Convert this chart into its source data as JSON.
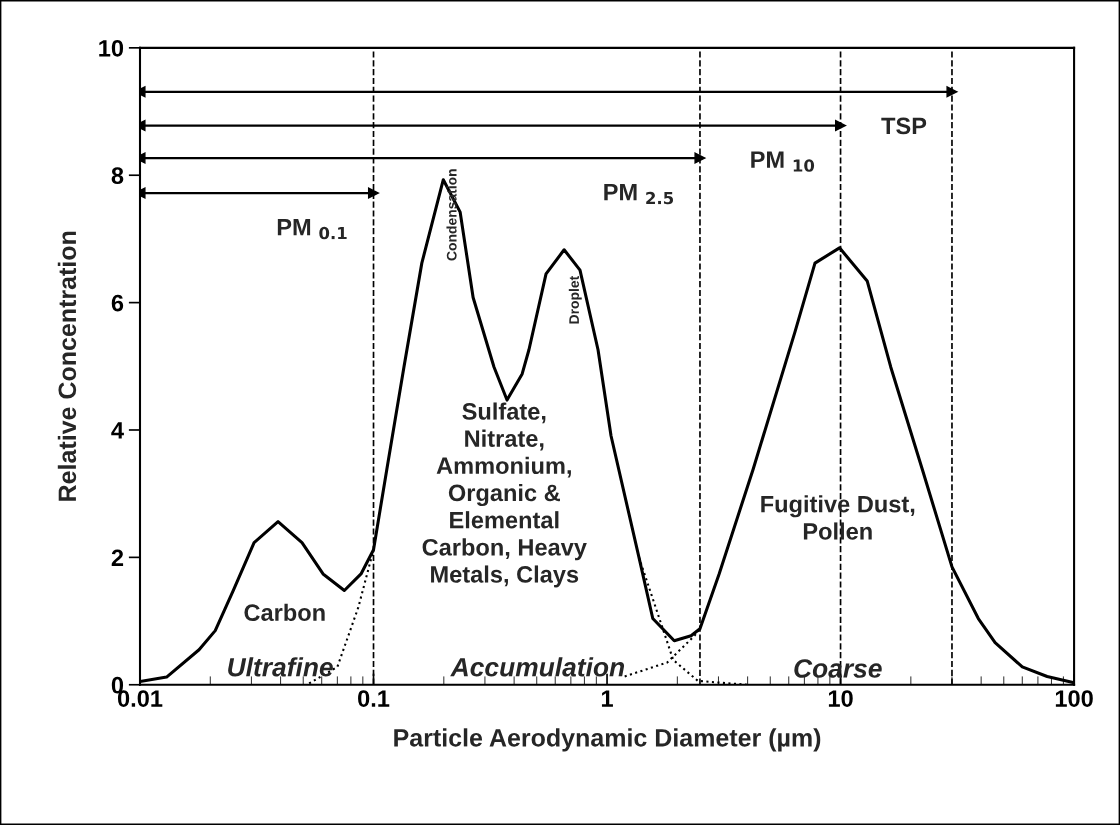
{
  "chart_data": {
    "type": "line",
    "xlabel": "Particle Aerodynamic Diameter (µm)",
    "ylabel": "Relative Concentration",
    "log": "x",
    "xlim": [
      0.01,
      100
    ],
    "xticks": [
      0.01,
      0.1,
      1,
      10,
      100
    ],
    "ylim": [
      0,
      10
    ],
    "yticks": [
      0,
      2,
      4,
      6,
      8,
      10
    ],
    "grid": false,
    "legend": false,
    "series": [
      {
        "color": "#000000",
        "line_style": "solid",
        "x": [
          0.01,
          0.013,
          0.0179,
          0.021,
          0.0251,
          0.0308,
          0.039,
          0.0494,
          0.0608,
          0.075,
          0.0884,
          0.1,
          0.114,
          0.135,
          0.161,
          0.199,
          0.235,
          0.267,
          0.328,
          0.373,
          0.433,
          0.463,
          0.548,
          0.655,
          0.766,
          0.915,
          1.04,
          1.37,
          1.57,
          1.94,
          2.29,
          2.5,
          3.02,
          4.22,
          6.38,
          7.77,
          9.9,
          13.0,
          16.4,
          22.4,
          30,
          38.9,
          45.9,
          60,
          76.7,
          100
        ],
        "values": [
          0.05,
          0.12,
          0.55,
          0.85,
          1.48,
          2.23,
          2.56,
          2.23,
          1.74,
          1.48,
          1.74,
          2.12,
          3.38,
          4.99,
          6.62,
          7.93,
          7.42,
          6.08,
          4.99,
          4.47,
          4.88,
          5.26,
          6.45,
          6.83,
          6.51,
          5.26,
          3.91,
          2.0,
          1.04,
          0.69,
          0.77,
          0.88,
          1.74,
          3.38,
          5.54,
          6.62,
          6.86,
          6.34,
          4.99,
          3.38,
          1.85,
          1.04,
          0.66,
          0.28,
          0.13,
          0.03
        ]
      },
      {
        "color": "#000000",
        "line_style": "dotted",
        "x": [
          0.053,
          0.07,
          0.086,
          0.1
        ],
        "values": [
          0.02,
          0.28,
          1.21,
          2.12
        ]
      },
      {
        "color": "#000000",
        "line_style": "dotted",
        "x": [
          1.37,
          1.92,
          2.45,
          4.0
        ],
        "values": [
          2.0,
          0.39,
          0.06,
          0.0
        ]
      },
      {
        "color": "#000000",
        "line_style": "dotted",
        "x": [
          1.19,
          1.81,
          2.37,
          2.5
        ],
        "values": [
          0.13,
          0.35,
          0.77,
          0.88
        ]
      },
      {
        "name": "PM $_{0.1}$",
        "color": "#000000",
        "line_style": "solid",
        "marker": "triangle",
        "x": [
          0.01,
          0.1
        ],
        "values": [
          7.72,
          7.72
        ]
      },
      {
        "name": "PM $_{2.5}$",
        "color": "#000000",
        "line_style": "solid",
        "marker": "triangle",
        "x": [
          0.01,
          2.5
        ],
        "values": [
          8.27,
          8.27
        ]
      },
      {
        "name": "PM $_{10}$",
        "color": "#000000",
        "line_style": "solid",
        "marker": "triangle",
        "x": [
          0.01,
          10
        ],
        "values": [
          8.78,
          8.78
        ]
      },
      {
        "name": "TSP",
        "color": "#000000",
        "line_style": "solid",
        "marker": "triangle",
        "x": [
          0.01,
          30
        ],
        "values": [
          9.31,
          9.31
        ]
      }
    ],
    "ref_lines": [
      {
        "axis": "x",
        "value": 0.1,
        "line_style": "dashed",
        "color": "#000000"
      },
      {
        "axis": "x",
        "value": 2.5,
        "line_style": "dashed",
        "color": "#000000"
      },
      {
        "axis": "x",
        "value": 10,
        "line_style": "dashed",
        "color": "#000000"
      },
      {
        "axis": "x",
        "value": 30,
        "line_style": "dashed",
        "color": "#000000"
      }
    ],
    "annotations": [
      "Condensation",
      "Droplet",
      "Carbon",
      "Sulfate,\nNitrate,\nAmmonium,\nOrganic &\nElemental\nCarbon, Heavy\nMetals, Clays",
      "Fugitive Dust,\nPollen",
      "Ultrafine",
      "Accumulation",
      "Coarse"
    ]
  }
}
